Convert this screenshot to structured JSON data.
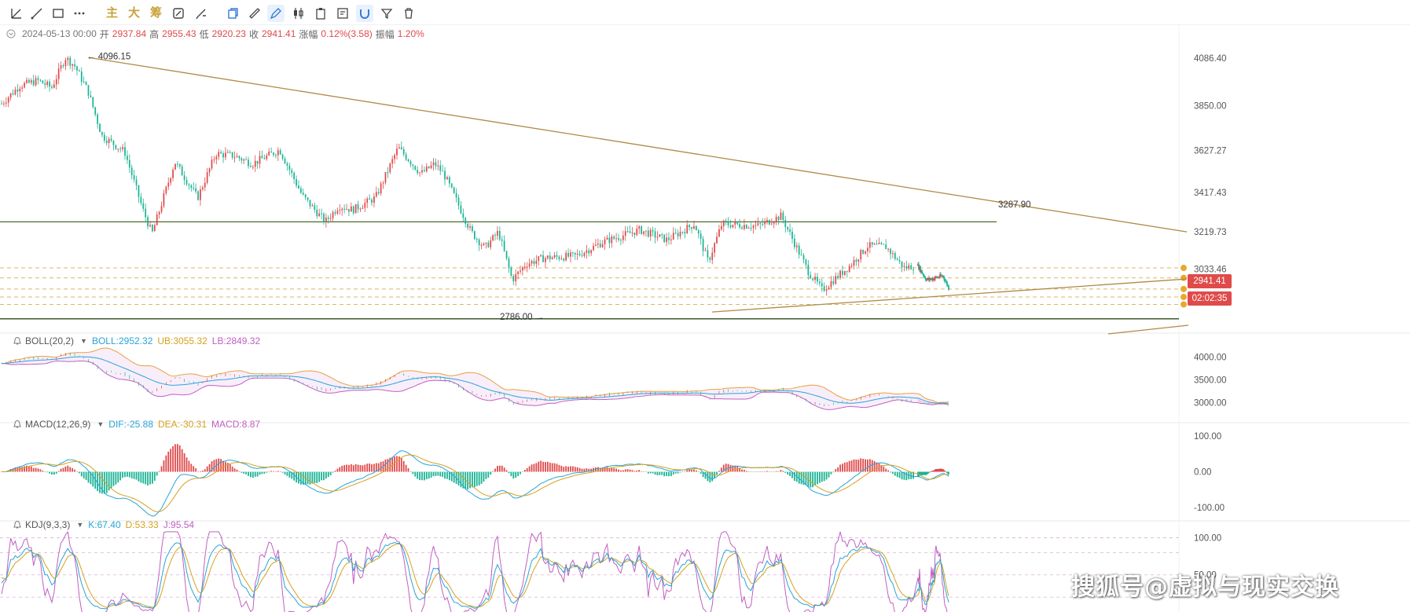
{
  "toolbar": {
    "left_icons": [
      "trend-line-icon",
      "ray-icon",
      "rectangle-icon",
      "more-icon"
    ],
    "text_tools": [
      "主",
      "大",
      "筹"
    ],
    "right_icons": [
      "copy-icon",
      "ruler-icon",
      "pen-icon",
      "candle-icon",
      "clipboard-icon",
      "note-icon",
      "magnet-icon",
      "filter-icon",
      "trash-icon"
    ]
  },
  "ohlc": {
    "date": "2024-05-13 00:00",
    "open_label": "开",
    "open": "2937.84",
    "high_label": "高",
    "high": "2955.43",
    "low_label": "低",
    "low": "2920.23",
    "close_label": "收",
    "close": "2941.41",
    "change_label": "涨幅",
    "change": "0.12%(3.58)",
    "amp_label": "振幅",
    "amp": "1.20%"
  },
  "price_tags": {
    "current_price": "2941.41",
    "countdown": "02:02:35"
  },
  "indicators": {
    "boll": {
      "name": "BOLL(20,2)",
      "mid": "BOLL:2952.32",
      "ub": "UB:3055.32",
      "lb": "LB:2849.32"
    },
    "macd": {
      "name": "MACD(12,26,9)",
      "dif": "DIF:-25.88",
      "dea": "DEA:-30.31",
      "macd": "MACD:8.87"
    },
    "kdj": {
      "name": "KDJ(9,3,3)",
      "k": "K:67.40",
      "d": "D:53.33",
      "j": "J:95.54"
    }
  },
  "colors": {
    "up": "#e04a4a",
    "down": "#1bb394",
    "trendline": "#b08a46",
    "support": "#4a6b2a",
    "boll_mid": "#29a4d6",
    "boll_ub": "#e8a040",
    "boll_lb": "#c060c0",
    "dif": "#29a4d6",
    "dea": "#d6a020",
    "k": "#29a4d6",
    "d": "#d6a020",
    "j": "#c060c0"
  },
  "watermark": "搜狐号@虚拟与现实交换",
  "chart_data": [
    {
      "type": "candlestick",
      "title": "",
      "ylim": [
        2750,
        4150
      ],
      "yticks": [
        "4086.40",
        "3850.00",
        "3627.27",
        "3417.43",
        "3219.73",
        "3033.46"
      ],
      "annotations": [
        {
          "text": "4096.15",
          "price": 4096.15
        },
        {
          "text": "2786.00",
          "price": 2786.0
        },
        {
          "text": "3287.90",
          "price": 3287.9
        }
      ],
      "horizontal_lines": [
        3270,
        3040,
        2990,
        2935,
        2895,
        2858
      ],
      "trendlines": [
        {
          "from": [
            0.075,
            4090
          ],
          "to": [
            1.0,
            3220
          ]
        },
        {
          "from": [
            0.6,
            2820
          ],
          "to": [
            1.0,
            2985
          ]
        }
      ],
      "keypoints": [
        [
          0,
          3860
        ],
        [
          0.02,
          3950
        ],
        [
          0.04,
          3975
        ],
        [
          0.055,
          3940
        ],
        [
          0.07,
          4090
        ],
        [
          0.08,
          4050
        ],
        [
          0.095,
          3920
        ],
        [
          0.11,
          3700
        ],
        [
          0.135,
          3620
        ],
        [
          0.155,
          3330
        ],
        [
          0.165,
          3210
        ],
        [
          0.19,
          3570
        ],
        [
          0.215,
          3390
        ],
        [
          0.235,
          3610
        ],
        [
          0.255,
          3600
        ],
        [
          0.275,
          3560
        ],
        [
          0.305,
          3630
        ],
        [
          0.33,
          3400
        ],
        [
          0.355,
          3270
        ],
        [
          0.37,
          3350
        ],
        [
          0.385,
          3330
        ],
        [
          0.41,
          3390
        ],
        [
          0.435,
          3640
        ],
        [
          0.46,
          3510
        ],
        [
          0.475,
          3560
        ],
        [
          0.485,
          3510
        ],
        [
          0.515,
          3220
        ],
        [
          0.53,
          3140
        ],
        [
          0.545,
          3220
        ],
        [
          0.56,
          2980
        ],
        [
          0.575,
          3060
        ],
        [
          0.595,
          3090
        ],
        [
          0.63,
          3100
        ],
        [
          0.66,
          3170
        ],
        [
          0.7,
          3230
        ],
        [
          0.73,
          3180
        ],
        [
          0.76,
          3260
        ],
        [
          0.775,
          3070
        ],
        [
          0.79,
          3260
        ],
        [
          0.83,
          3250
        ],
        [
          0.855,
          3300
        ],
        [
          0.87,
          3160
        ],
        [
          0.885,
          3020
        ],
        [
          0.9,
          2930
        ],
        [
          0.93,
          3050
        ],
        [
          0.95,
          3150
        ],
        [
          0.97,
          3145
        ],
        [
          0.99,
          3040
        ],
        [
          1.0,
          3050
        ]
      ],
      "keypoints_tail": [
        [
          0,
          3050
        ],
        [
          0.08,
          2980
        ],
        [
          0.23,
          3000
        ],
        [
          0.28,
          2941
        ]
      ]
    },
    {
      "type": "line",
      "title": "BOLL(20,2)",
      "yticks": [
        "4000.00",
        "3500.00",
        "3000.00"
      ],
      "ylim": [
        2700,
        4250
      ]
    },
    {
      "type": "bar",
      "title": "MACD(12,26,9)",
      "yticks": [
        "100.00",
        "0.00",
        "-100.00"
      ],
      "ylim": [
        -120,
        120
      ]
    },
    {
      "type": "line",
      "title": "KDJ(9,3,3)",
      "yticks": [
        "100.00",
        "50.00"
      ],
      "ylim": [
        0,
        110
      ]
    }
  ]
}
